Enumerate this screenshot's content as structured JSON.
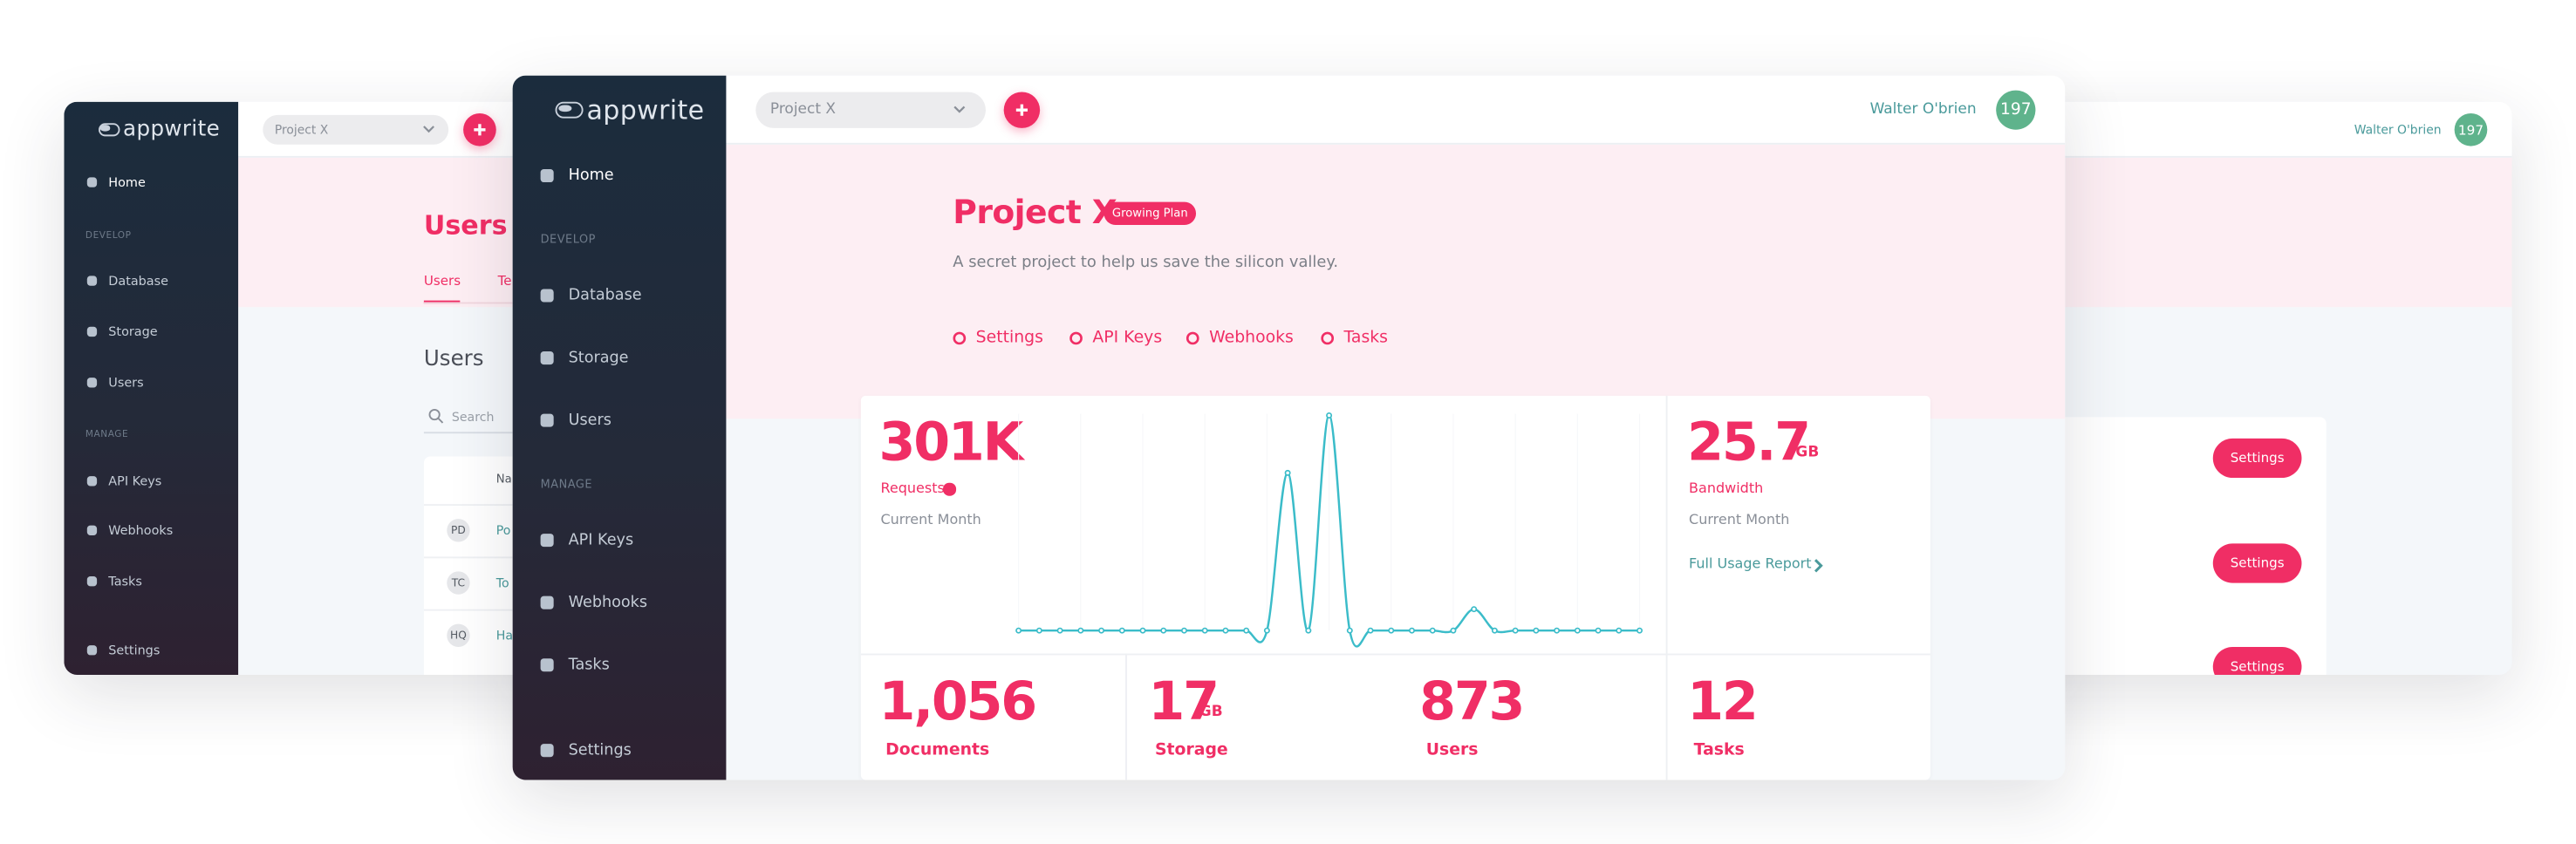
{
  "back": {
    "logo": "appwrite",
    "project_select": "Project X",
    "user_name": "Walter O'brien",
    "avatar": "197",
    "nav": [
      {
        "label": "Home"
      },
      {
        "heading": "DEVELOP"
      },
      {
        "label": "Database"
      },
      {
        "label": "Storage"
      },
      {
        "label": "Users"
      },
      {
        "heading": "MANAGE"
      },
      {
        "label": "API Keys"
      },
      {
        "label": "Webhooks"
      },
      {
        "label": "Tasks"
      },
      {
        "label": "Settings"
      }
    ],
    "page_title": "Users",
    "tabs": [
      "Users",
      "Te"
    ],
    "section_title": "Users",
    "search_placeholder": "Search",
    "table_header": "Na",
    "rows": [
      {
        "initials": "PD",
        "name": "Po"
      },
      {
        "initials": "TC",
        "name": "To"
      },
      {
        "initials": "HQ",
        "name": "Ha"
      }
    ],
    "buttons": [
      "Settings",
      "Settings",
      "Settings"
    ]
  },
  "front": {
    "logo": "appwrite",
    "project_select": "Project X",
    "user_name": "Walter O'brien",
    "avatar": "197",
    "nav": [
      {
        "label": "Home"
      },
      {
        "heading": "DEVELOP"
      },
      {
        "label": "Database"
      },
      {
        "label": "Storage"
      },
      {
        "label": "Users"
      },
      {
        "heading": "MANAGE"
      },
      {
        "label": "API Keys"
      },
      {
        "label": "Webhooks"
      },
      {
        "label": "Tasks"
      },
      {
        "label": "Settings"
      }
    ],
    "project": {
      "title": "Project X",
      "badge": "Growing Plan",
      "description": "A secret project to help us save the silicon valley.",
      "tabs": [
        "Settings",
        "API Keys",
        "Webhooks",
        "Tasks"
      ]
    },
    "requests": {
      "value": "301K",
      "label": "Requests",
      "period": "Current Month"
    },
    "bandwidth": {
      "value": "25.7",
      "unit": "GB",
      "label": "Bandwidth",
      "period": "Current Month",
      "link": "Full Usage Report"
    },
    "stats": [
      {
        "value": "1,056",
        "label": "Documents"
      },
      {
        "value": "17",
        "unit": "GB",
        "label": "Storage"
      },
      {
        "value": "873",
        "label": "Users"
      },
      {
        "value": "12",
        "label": "Tasks"
      }
    ],
    "usage_chart": {
      "type": "line",
      "color": "#3bbcc9",
      "values": [
        0,
        0,
        0,
        0,
        0,
        0,
        0,
        0,
        0,
        0,
        0,
        0,
        0,
        96,
        0,
        131,
        0,
        0,
        0,
        0,
        0,
        0,
        13,
        0,
        0,
        0,
        0,
        0,
        0,
        0,
        0
      ]
    }
  }
}
